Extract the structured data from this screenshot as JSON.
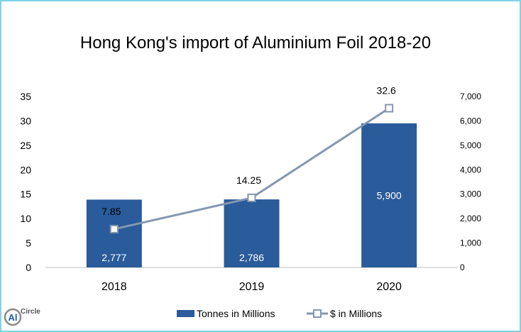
{
  "chart_data": {
    "type": "bar+line",
    "title": "Hong Kong's import of Aluminium Foil 2018-20",
    "categories": [
      "2018",
      "2019",
      "2020"
    ],
    "series": [
      {
        "name": "Tonnes in Millions",
        "kind": "bar",
        "axis": "secondary",
        "values": [
          2777,
          2786,
          5900
        ],
        "labels": [
          "2,777",
          "2,786",
          "5,900"
        ],
        "color": "#2a5b9a"
      },
      {
        "name": "$ in Millions",
        "kind": "line",
        "axis": "primary",
        "values": [
          7.85,
          14.25,
          32.6
        ],
        "labels": [
          "7.85",
          "14.25",
          "32.6"
        ],
        "color": "#8497b0"
      }
    ],
    "y_left": {
      "min": 0,
      "max": 35,
      "ticks": [
        "0",
        "5",
        "10",
        "15",
        "20",
        "25",
        "30",
        "35"
      ]
    },
    "y_right": {
      "min": 0,
      "max": 7000,
      "ticks": [
        "0",
        "1,000",
        "2,000",
        "3,000",
        "4,000",
        "5,000",
        "6,000",
        "7,000"
      ]
    },
    "legend_position": "bottom",
    "grid": false
  },
  "logo": {
    "name": "AlCircle",
    "icon": "alcircle-logo"
  }
}
